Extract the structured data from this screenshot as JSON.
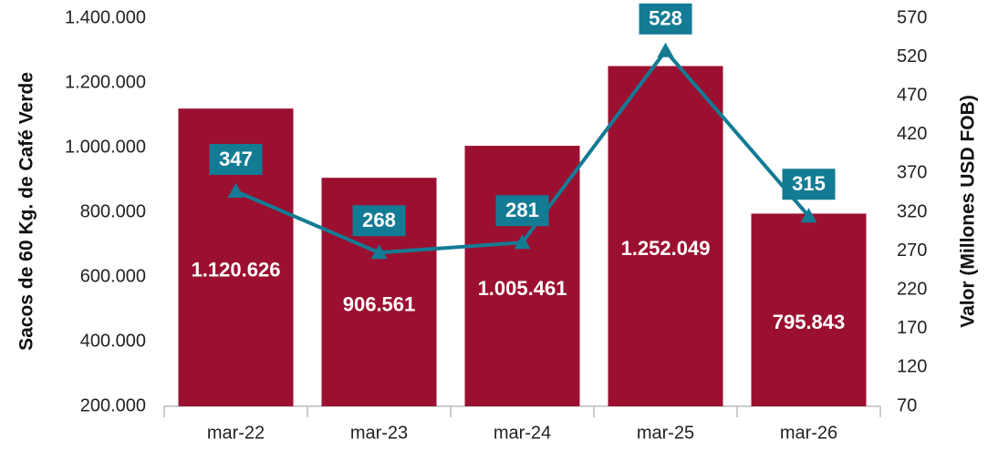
{
  "chart_data": {
    "type": "bar_line",
    "categories": [
      "mar-22",
      "mar-23",
      "mar-24",
      "mar-25",
      "mar-26"
    ],
    "y_label": "Sacos de  60 Kg. de Café Verde",
    "y2_label": "Valor (Millones  USD FOB)",
    "series": [
      {
        "name": "Sacos",
        "type": "bar",
        "color": "#9b1030",
        "values": [
          1120626,
          906561,
          1005461,
          1252049,
          795843
        ],
        "value_labels": [
          "1.120.626",
          "906.561",
          "1.005.461",
          "1.252.049",
          "795.843"
        ]
      },
      {
        "name": "Valor",
        "type": "line",
        "axis": "y2",
        "color": "#137b94",
        "values": [
          347,
          268,
          281,
          528,
          315
        ]
      }
    ],
    "ylim": [
      200000,
      1400000
    ],
    "yticks": [
      {
        "value": 200000,
        "label": "200.000"
      },
      {
        "value": 400000,
        "label": "400.000"
      },
      {
        "value": 600000,
        "label": "600.000"
      },
      {
        "value": 800000,
        "label": "800.000"
      },
      {
        "value": 1000000,
        "label": "1.000.000"
      },
      {
        "value": 1200000,
        "label": "1.200.000"
      },
      {
        "value": 1400000,
        "label": "1.400.000"
      }
    ],
    "y2lim": [
      70,
      570
    ],
    "y2ticks": [
      70,
      120,
      170,
      220,
      270,
      320,
      370,
      420,
      470,
      520,
      570
    ]
  }
}
